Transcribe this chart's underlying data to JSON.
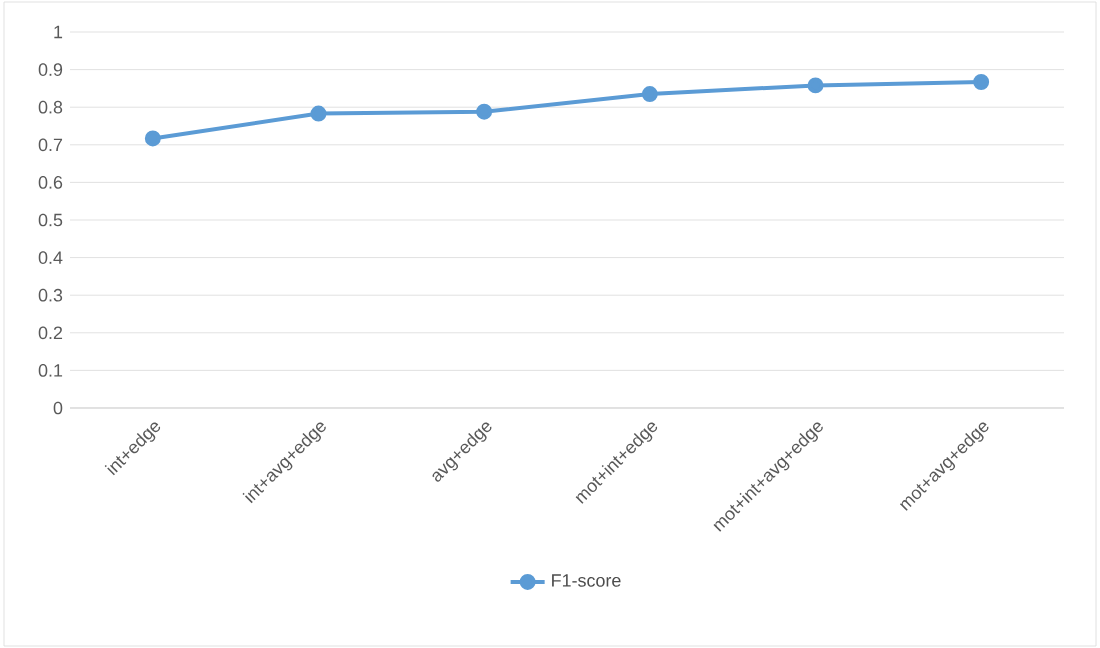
{
  "chart_data": {
    "type": "line",
    "categories": [
      "int+edge",
      "int+avg+edge",
      "avg+edge",
      "mot+int+edge",
      "mot+int+avg+edge",
      "mot+avg+edge"
    ],
    "series": [
      {
        "name": "F1-score",
        "color": "#5b9bd5",
        "values": [
          0.717,
          0.783,
          0.788,
          0.835,
          0.858,
          0.867
        ]
      }
    ],
    "ylim": [
      0,
      1
    ],
    "yticks": [
      0,
      0.1,
      0.2,
      0.3,
      0.4,
      0.5,
      0.6,
      0.7,
      0.8,
      0.9,
      1
    ],
    "grid": "y",
    "legend": "bottom",
    "marker": "circle",
    "line_style": "solid"
  }
}
